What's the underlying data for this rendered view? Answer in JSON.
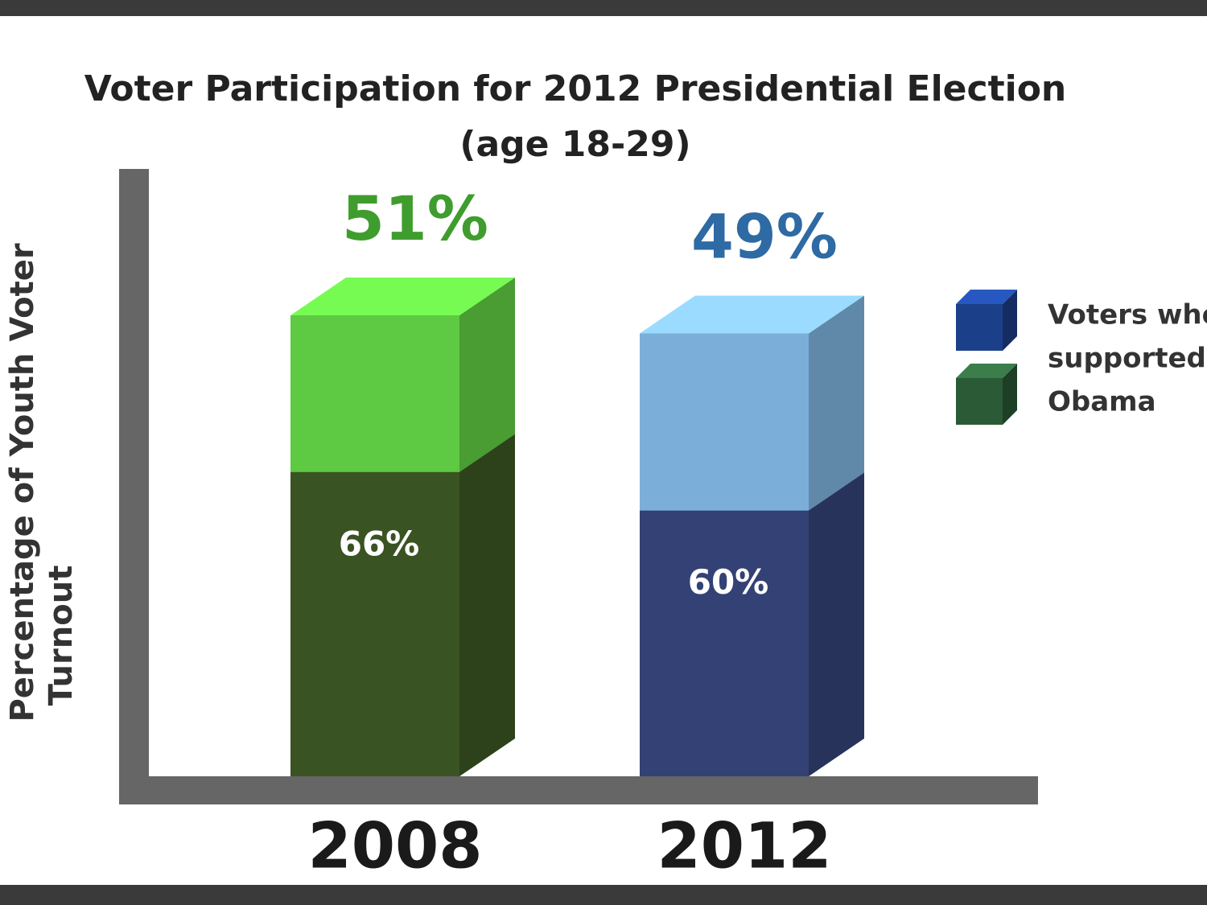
{
  "chart_data": {
    "type": "bar3d",
    "title": "Voter Participation for 2012 Presidential Election",
    "subtitle": "(age 18-29)",
    "y_label": [
      "Percentage of Youth Voter",
      "Turnout"
    ],
    "categories": [
      "2008",
      "2012"
    ],
    "values": [
      51,
      49
    ],
    "value_labels": [
      "51%",
      "49%"
    ],
    "bar_colors": [
      "#5ec942",
      "#7bafd9"
    ],
    "label_colors": [
      "#3f9d2e",
      "#2e6aa4"
    ],
    "inner": {
      "values": [
        66,
        60
      ],
      "value_labels": [
        "66%",
        "60%"
      ],
      "colors": [
        "#3a5323",
        "#334175"
      ]
    },
    "legend": {
      "lines": [
        "Voters who",
        "supported",
        "Obama"
      ],
      "colors": [
        "#1c3f8a",
        "#2a5a36"
      ]
    }
  }
}
